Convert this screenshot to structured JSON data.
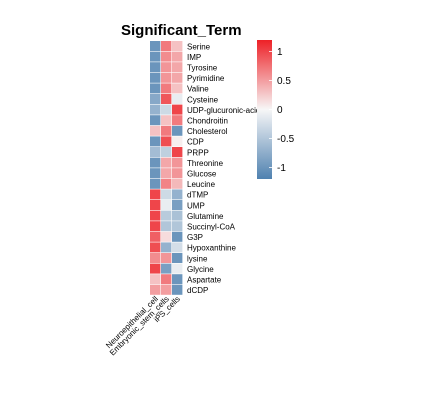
{
  "chart_data": {
    "type": "heatmap",
    "title": "Significant_Term",
    "columns": [
      "Neuroepithelial_cell",
      "Embryonic_stem_cells",
      "iPS_cells"
    ],
    "rows": [
      "Serine",
      "IMP",
      "Tyrosine",
      "Pyrimidine",
      "Valine",
      "Cysteine",
      "UDP-glucuronic-acid",
      "Chondroitin",
      "Cholesterol",
      "CDP",
      "PRPP",
      "Threonine",
      "Glucose",
      "Leucine",
      "dTMP",
      "UMP",
      "Glutamine",
      "Succinyl-CoA",
      "G3P",
      "Hypoxanthine",
      "lysine",
      "Glycine",
      "Aspartate",
      "dCDP"
    ],
    "values": [
      [
        -1.0,
        0.7,
        0.3
      ],
      [
        -1.0,
        0.6,
        0.45
      ],
      [
        -1.0,
        0.55,
        0.45
      ],
      [
        -1.0,
        0.55,
        0.45
      ],
      [
        -1.0,
        0.7,
        0.3
      ],
      [
        -0.8,
        0.9,
        -0.1
      ],
      [
        -0.7,
        -0.3,
        1.0
      ],
      [
        -1.0,
        0.3,
        0.7
      ],
      [
        0.3,
        0.7,
        -1.0
      ],
      [
        -1.0,
        0.95,
        0.05
      ],
      [
        -0.6,
        -0.4,
        1.0
      ],
      [
        -1.0,
        0.45,
        0.55
      ],
      [
        -1.0,
        0.45,
        0.55
      ],
      [
        -1.0,
        0.65,
        0.35
      ],
      [
        1.0,
        -0.3,
        -0.7
      ],
      [
        1.0,
        -0.1,
        -0.9
      ],
      [
        1.0,
        -0.45,
        -0.55
      ],
      [
        1.0,
        -0.5,
        -0.5
      ],
      [
        0.85,
        0.15,
        -1.0
      ],
      [
        0.95,
        -0.7,
        -0.25
      ],
      [
        0.6,
        0.55,
        -1.0
      ],
      [
        1.0,
        -0.9,
        -0.1
      ],
      [
        0.3,
        0.7,
        -1.0
      ],
      [
        0.5,
        0.5,
        -1.0
      ]
    ],
    "color_scale": {
      "low": "#4f81b0",
      "mid": "#f7f7f7",
      "high": "#ed2127"
    },
    "range": [
      -1.2,
      1.2
    ],
    "legend_ticks": [
      {
        "value": 1,
        "label": "1"
      },
      {
        "value": 0.5,
        "label": "0.5"
      },
      {
        "value": 0,
        "label": "0"
      },
      {
        "value": -0.5,
        "label": "-0.5"
      },
      {
        "value": -1,
        "label": "-1"
      }
    ],
    "legend_placement": "right"
  }
}
